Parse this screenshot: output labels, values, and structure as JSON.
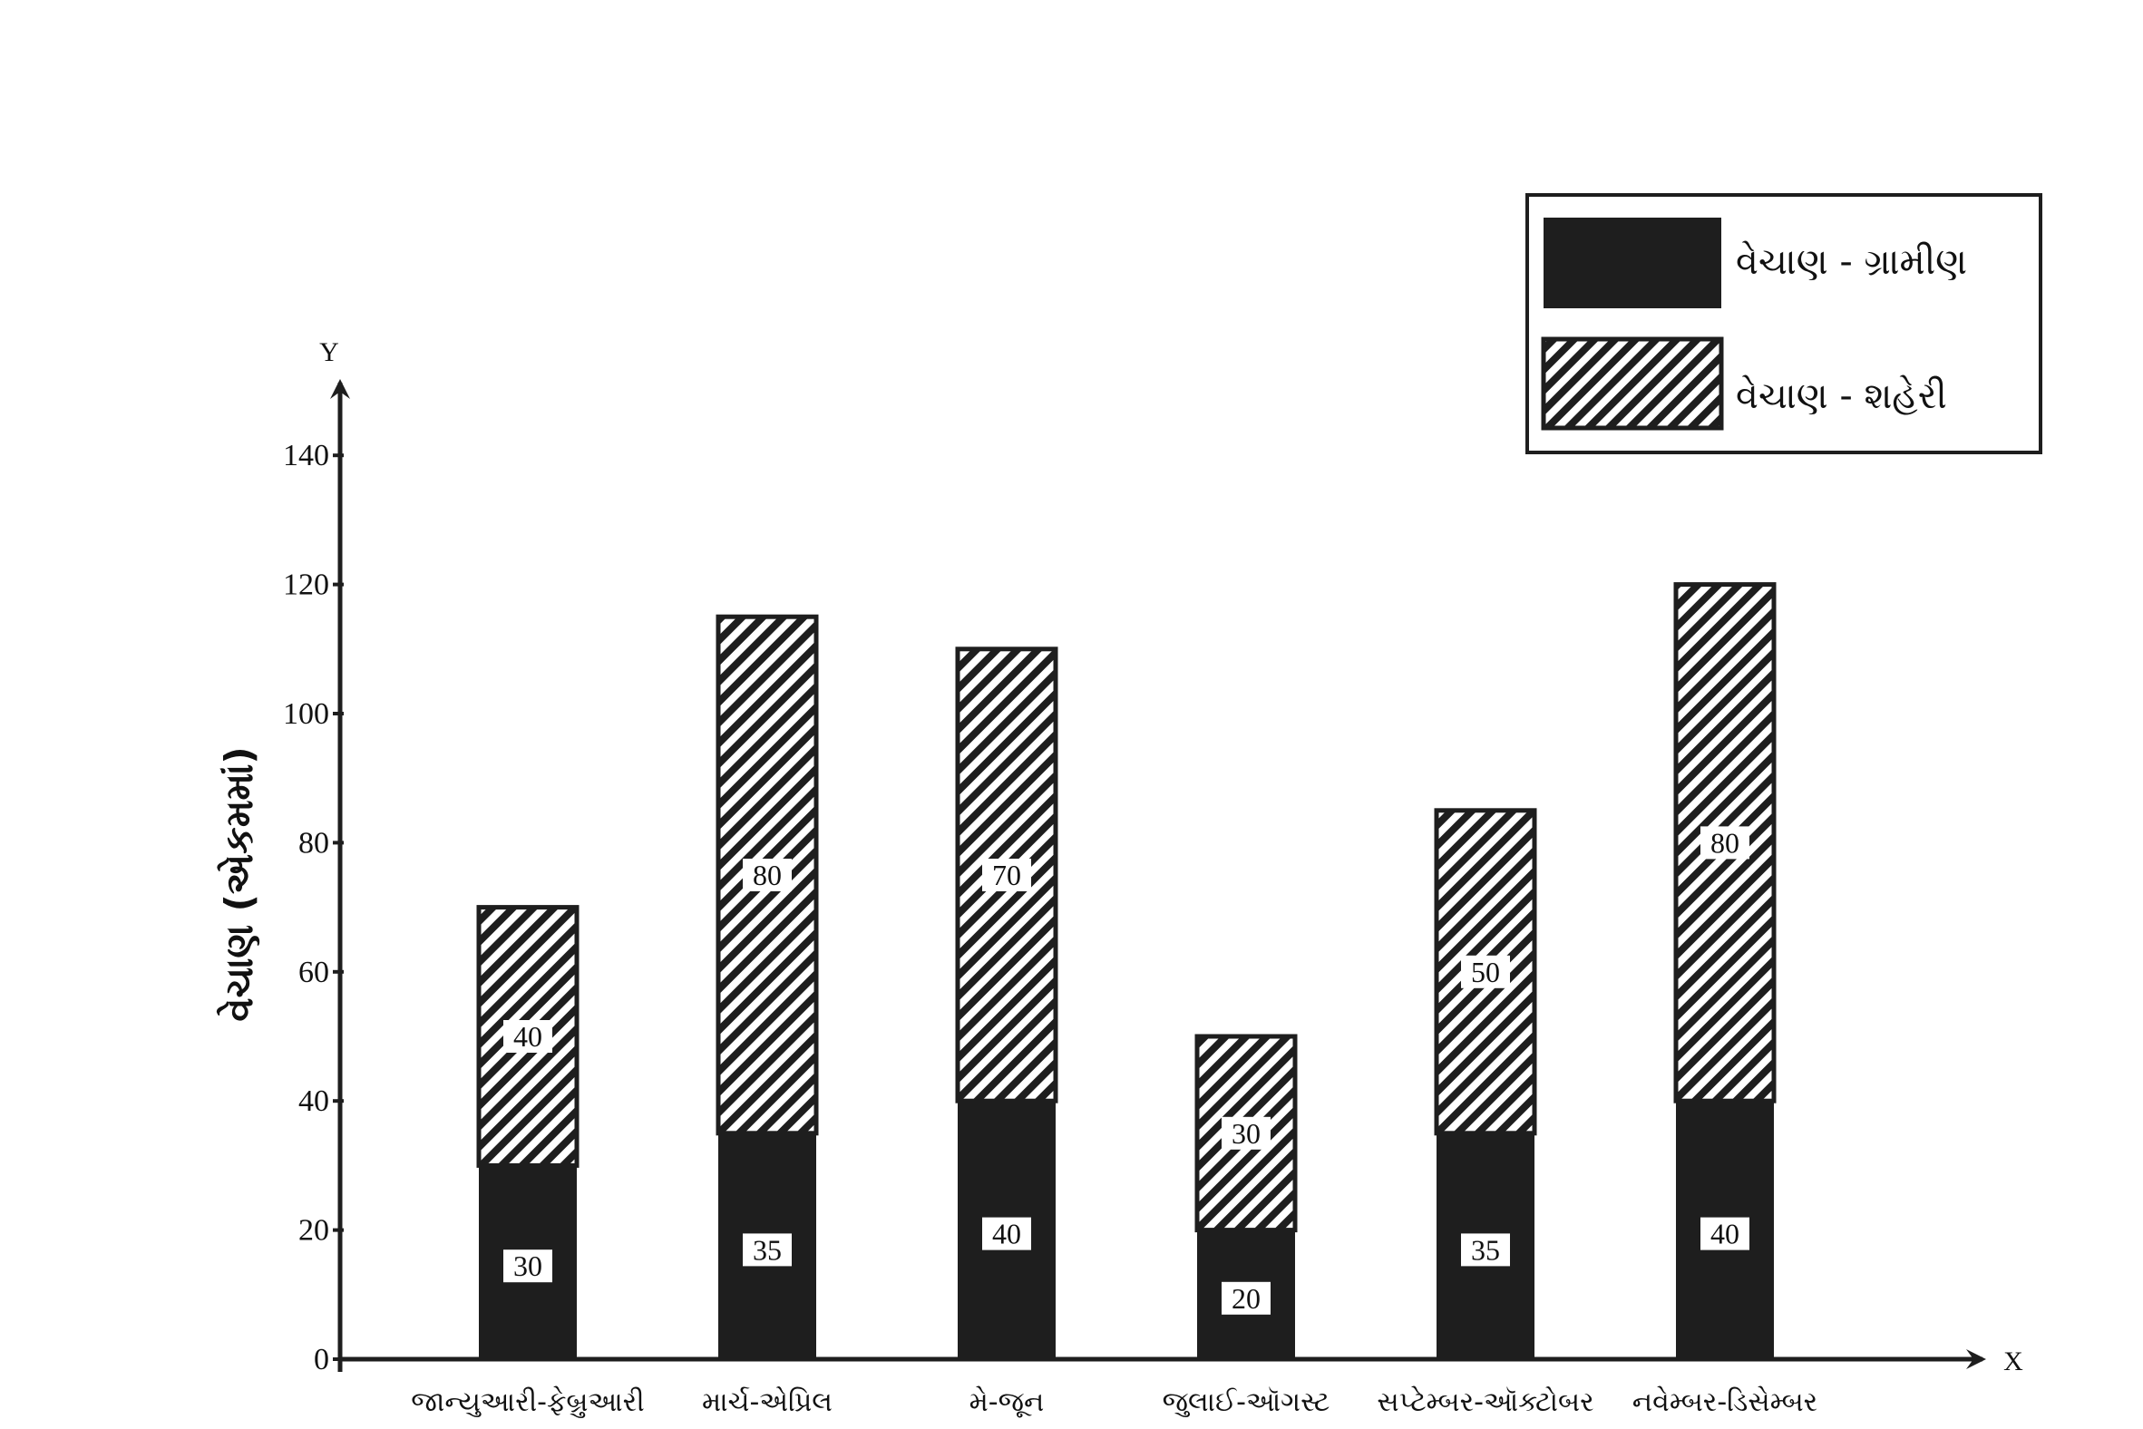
{
  "chart_data": {
    "type": "bar",
    "stacked": true,
    "categories": [
      "જાન્યુઆરી-ફેબ્રુઆરી",
      "માર્ચ-એપ્રિલ",
      "મે-જૂન",
      "જુલાઈ-ઑગસ્ટ",
      "સપ્ટેમ્બર-ઑક્ટોબર",
      "નવેમ્બર-ડિસેમ્બર"
    ],
    "series": [
      {
        "name": "વેચાણ - ગ્રામીણ",
        "values": [
          30,
          35,
          40,
          20,
          35,
          40
        ],
        "fill": "solid",
        "color": "#1e1e1e"
      },
      {
        "name": "વેચાણ - શહેરી",
        "values": [
          40,
          80,
          70,
          30,
          50,
          80
        ],
        "fill": "hatch",
        "color": "#1e1e1e"
      }
    ],
    "ylabel": "વેચાણ (એકમમાં)",
    "x_axis_letter": "X",
    "y_axis_letter": "Y",
    "ylim": [
      0,
      150
    ],
    "yticks": [
      0,
      20,
      40,
      60,
      80,
      100,
      120,
      140
    ],
    "grid": false,
    "legend_position": "top-right",
    "data_labels": true
  }
}
